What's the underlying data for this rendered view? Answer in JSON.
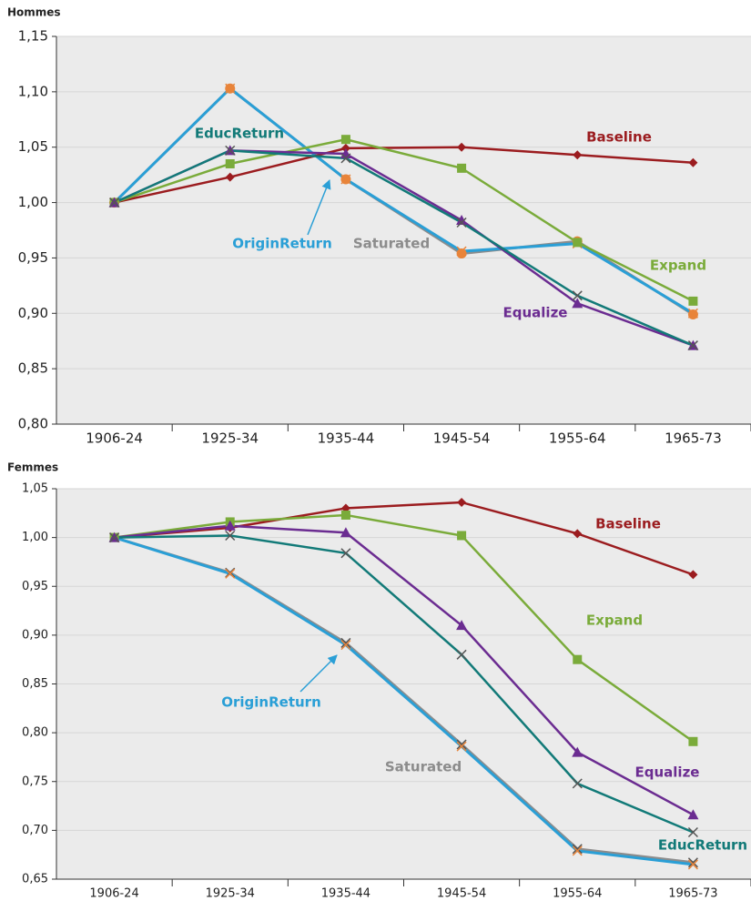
{
  "chart_data": [
    {
      "type": "line",
      "title": "Hommes",
      "categories": [
        "1906-24",
        "1925-34",
        "1935-44",
        "1945-54",
        "1955-64",
        "1965-73"
      ],
      "ylim": [
        0.8,
        1.15
      ],
      "yticks": [
        {
          "value": 0.8,
          "label": "0,80"
        },
        {
          "value": 0.85,
          "label": "0,85"
        },
        {
          "value": 0.9,
          "label": "0,90"
        },
        {
          "value": 0.95,
          "label": "0,95"
        },
        {
          "value": 1.0,
          "label": "1,00"
        },
        {
          "value": 1.05,
          "label": "1,05"
        },
        {
          "value": 1.1,
          "label": "1,10"
        },
        {
          "value": 1.15,
          "label": "1,15"
        }
      ],
      "grid": true,
      "series": [
        {
          "name": "Saturated",
          "color": "#8c8c8c",
          "marker": "circle",
          "marker_color": "#e8843a",
          "values": [
            1.0,
            1.103,
            1.021,
            0.954,
            0.965,
            0.899
          ]
        },
        {
          "name": "OriginReturn",
          "color": "#2a9fd6",
          "marker": "x",
          "marker_color": "#e8843a",
          "values": [
            1.0,
            1.103,
            1.021,
            0.956,
            0.963,
            0.9
          ]
        },
        {
          "name": "Baseline",
          "color": "#9b1c1f",
          "marker": "diamond",
          "marker_color": "#9b1c1f",
          "values": [
            1.0,
            1.023,
            1.049,
            1.05,
            1.043,
            1.036
          ]
        },
        {
          "name": "Expand",
          "color": "#7aab3a",
          "marker": "square",
          "marker_color": "#7aab3a",
          "values": [
            1.0,
            1.035,
            1.057,
            1.031,
            0.964,
            0.911
          ]
        },
        {
          "name": "Equalize",
          "color": "#6b2c91",
          "marker": "triangle",
          "marker_color": "#6b2c91",
          "values": [
            1.0,
            1.047,
            1.044,
            0.984,
            0.909,
            0.871
          ]
        },
        {
          "name": "EducReturn",
          "color": "#127a78",
          "marker": "x",
          "marker_color": "#555555",
          "values": [
            1.0,
            1.047,
            1.04,
            0.982,
            0.916,
            0.871
          ]
        }
      ]
    },
    {
      "type": "line",
      "title": "Femmes",
      "categories": [
        "1906-24",
        "1925-34",
        "1935-44",
        "1945-54",
        "1955-64",
        "1965-73"
      ],
      "ylim": [
        0.65,
        1.05
      ],
      "yticks": [
        {
          "value": 0.65,
          "label": "0,65"
        },
        {
          "value": 0.7,
          "label": "0,70"
        },
        {
          "value": 0.75,
          "label": "0,75"
        },
        {
          "value": 0.8,
          "label": "0,80"
        },
        {
          "value": 0.85,
          "label": "0,85"
        },
        {
          "value": 0.9,
          "label": "0,90"
        },
        {
          "value": 0.95,
          "label": "0,95"
        },
        {
          "value": 1.0,
          "label": "1,00"
        },
        {
          "value": 1.05,
          "label": "1,05"
        }
      ],
      "grid": true,
      "series": [
        {
          "name": "Saturated",
          "color": "#8c8c8c",
          "marker": "x",
          "marker_color": "#555555",
          "values": [
            1.0,
            0.964,
            0.892,
            0.788,
            0.681,
            0.667
          ]
        },
        {
          "name": "OriginReturn",
          "color": "#2a9fd6",
          "marker": "x",
          "marker_color": "#e8843a",
          "values": [
            1.0,
            0.963,
            0.89,
            0.786,
            0.679,
            0.665
          ]
        },
        {
          "name": "Baseline",
          "color": "#9b1c1f",
          "marker": "diamond",
          "marker_color": "#9b1c1f",
          "values": [
            1.0,
            1.01,
            1.03,
            1.036,
            1.004,
            0.962
          ]
        },
        {
          "name": "Expand",
          "color": "#7aab3a",
          "marker": "square",
          "marker_color": "#7aab3a",
          "values": [
            1.0,
            1.016,
            1.023,
            1.002,
            0.875,
            0.791
          ]
        },
        {
          "name": "Equalize",
          "color": "#6b2c91",
          "marker": "triangle",
          "marker_color": "#6b2c91",
          "values": [
            1.0,
            1.012,
            1.005,
            0.91,
            0.78,
            0.716
          ]
        },
        {
          "name": "EducReturn",
          "color": "#127a78",
          "marker": "x",
          "marker_color": "#555555",
          "values": [
            1.0,
            1.002,
            0.984,
            0.88,
            0.748,
            0.698
          ]
        }
      ]
    }
  ]
}
